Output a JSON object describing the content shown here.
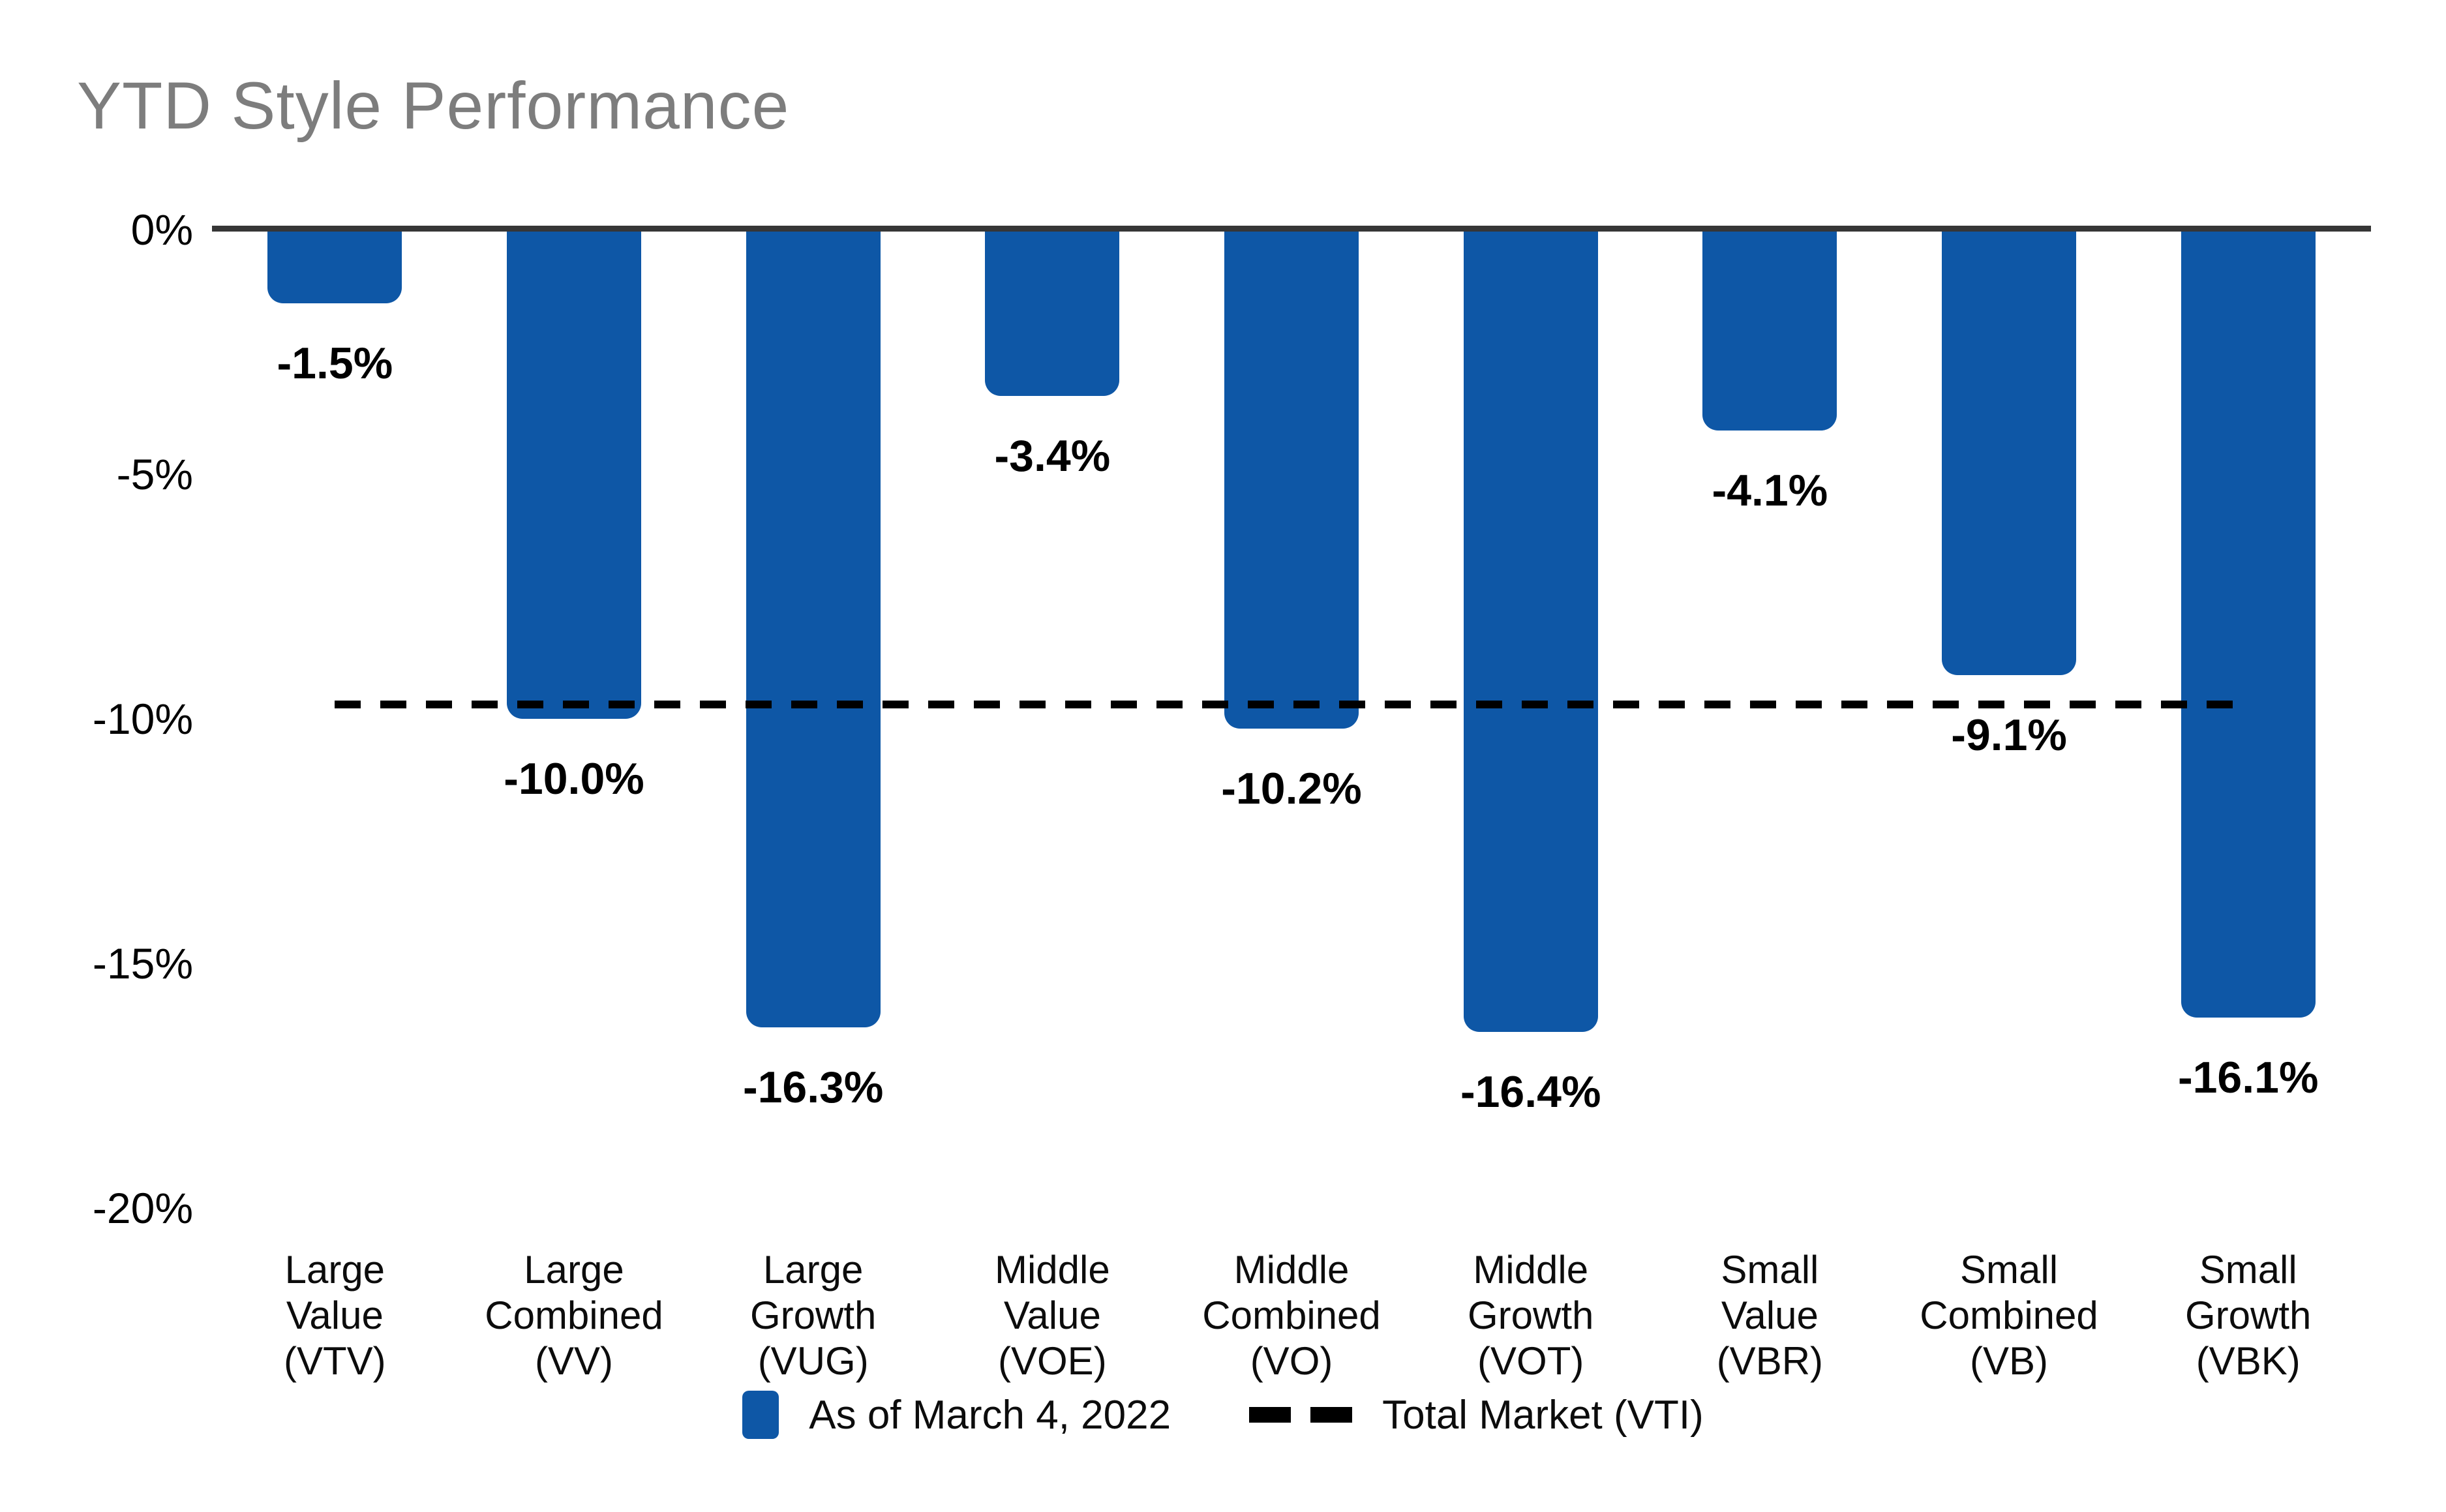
{
  "title": "YTD Style Performance",
  "chart_data": {
    "type": "bar",
    "title": "YTD Style Performance",
    "categories": [
      "Large Value (VTV)",
      "Large Combined (VV)",
      "Large Growth (VUG)",
      "Middle Value (VOE)",
      "Middle Combined (VO)",
      "Middle Growth (VOT)",
      "Small Value (VBR)",
      "Small Combined (VB)",
      "Small Growth (VBK)"
    ],
    "category_label_lines": [
      [
        "Large",
        "Value",
        "(VTV)"
      ],
      [
        "Large",
        "Combined",
        "(VV)"
      ],
      [
        "Large",
        "Growth",
        "(VUG)"
      ],
      [
        "Middle",
        "Value",
        "(VOE)"
      ],
      [
        "Middle",
        "Combined",
        "(VO)"
      ],
      [
        "Middle",
        "Growth",
        "(VOT)"
      ],
      [
        "Small",
        "Value",
        "(VBR)"
      ],
      [
        "Small",
        "Combined",
        "(VB)"
      ],
      [
        "Small",
        "Growth",
        "(VBK)"
      ]
    ],
    "series": [
      {
        "name": "As of March 4, 2022",
        "values": [
          -1.5,
          -10.0,
          -16.3,
          -3.4,
          -10.2,
          -16.4,
          -4.1,
          -9.1,
          -16.1
        ]
      }
    ],
    "value_labels": [
      "-1.5%",
      "-10.0%",
      "-16.3%",
      "-3.4%",
      "-10.2%",
      "-16.4%",
      "-4.1%",
      "-9.1%",
      "-16.1%"
    ],
    "y_ticks": [
      "0%",
      "-5%",
      "-10%",
      "-15%",
      "-20%"
    ],
    "ylim": [
      -20,
      0
    ],
    "grid": false,
    "legend_position": "bottom",
    "reference_line": {
      "name": "Total Market (VTI)",
      "value": -9.7,
      "style": "dashed",
      "color": "#000000"
    },
    "bar_color": "#0E57A6",
    "axis_line_color": "#363636",
    "title_color": "#7D7D7D"
  },
  "legend": {
    "series_label": "As of March 4, 2022",
    "line_label": "Total Market (VTI)"
  }
}
